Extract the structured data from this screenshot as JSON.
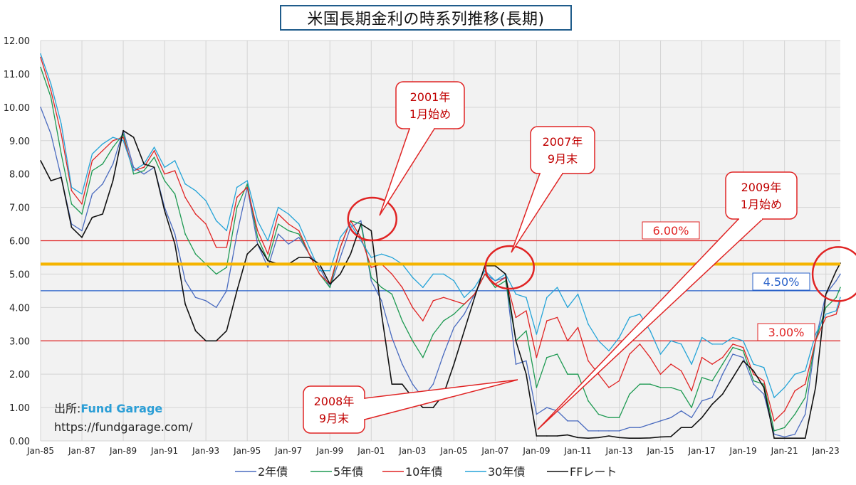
{
  "title": "米国長期金利の時系列推移(長期)",
  "source": {
    "label": "出所:",
    "brand": "Fund Garage",
    "url": "https://fundgarage.com/"
  },
  "chart_data": {
    "type": "line",
    "title": "米国長期金利の時系列推移(長期)",
    "xlabel": "",
    "ylabel": "",
    "ylim": [
      0,
      12
    ],
    "xlim": [
      1985.0,
      2023.7
    ],
    "grid": true,
    "legend_position": "bottom",
    "yticks": [
      "0.00",
      "1.00",
      "2.00",
      "3.00",
      "4.00",
      "5.00",
      "6.00",
      "7.00",
      "8.00",
      "9.00",
      "10.00",
      "11.00",
      "12.00"
    ],
    "xticks": [
      "Jan-85",
      "Jan-87",
      "Jan-89",
      "Jan-91",
      "Jan-93",
      "Jan-95",
      "Jan-97",
      "Jan-99",
      "Jan-01",
      "Jan-03",
      "Jan-05",
      "Jan-07",
      "Jan-09",
      "Jan-11",
      "Jan-13",
      "Jan-15",
      "Jan-17",
      "Jan-19",
      "Jan-21",
      "Jan-23"
    ],
    "series": [
      {
        "name": "2年債",
        "color": "#4a6bbf",
        "x": [
          1985.0,
          1985.5,
          1986.0,
          1986.5,
          1987.0,
          1987.5,
          1988.0,
          1988.5,
          1989.0,
          1989.5,
          1990.0,
          1990.5,
          1991.0,
          1991.5,
          1992.0,
          1992.5,
          1993.0,
          1993.5,
          1994.0,
          1994.5,
          1995.0,
          1995.5,
          1996.0,
          1996.5,
          1997.0,
          1997.5,
          1998.0,
          1998.5,
          1999.0,
          1999.5,
          2000.0,
          2000.5,
          2001.0,
          2001.5,
          2002.0,
          2002.5,
          2003.0,
          2003.5,
          2004.0,
          2004.5,
          2005.0,
          2005.5,
          2006.0,
          2006.5,
          2007.0,
          2007.5,
          2008.0,
          2008.5,
          2009.0,
          2009.5,
          2010.0,
          2010.5,
          2011.0,
          2011.5,
          2012.0,
          2012.5,
          2013.0,
          2013.5,
          2014.0,
          2014.5,
          2015.0,
          2015.5,
          2016.0,
          2016.5,
          2017.0,
          2017.5,
          2018.0,
          2018.5,
          2019.0,
          2019.5,
          2020.0,
          2020.5,
          2021.0,
          2021.5,
          2022.0,
          2022.5,
          2023.0,
          2023.5,
          2023.7
        ],
        "values": [
          10.0,
          9.2,
          7.9,
          6.5,
          6.3,
          7.4,
          7.7,
          8.3,
          9.3,
          8.2,
          8.0,
          8.2,
          7.0,
          6.2,
          4.8,
          4.3,
          4.2,
          4.0,
          4.5,
          6.2,
          7.6,
          5.9,
          5.2,
          6.2,
          5.9,
          6.1,
          5.6,
          5.2,
          4.6,
          5.5,
          6.4,
          6.6,
          4.8,
          4.2,
          3.1,
          2.3,
          1.7,
          1.3,
          1.7,
          2.6,
          3.4,
          3.8,
          4.4,
          5.0,
          4.8,
          4.9,
          2.3,
          2.4,
          0.8,
          1.0,
          0.9,
          0.6,
          0.6,
          0.3,
          0.3,
          0.3,
          0.3,
          0.4,
          0.4,
          0.5,
          0.6,
          0.7,
          0.9,
          0.7,
          1.2,
          1.3,
          2.0,
          2.6,
          2.5,
          1.7,
          1.4,
          0.2,
          0.12,
          0.2,
          0.8,
          3.0,
          4.4,
          4.8,
          5.0
        ]
      },
      {
        "name": "5年債",
        "color": "#1e9a52",
        "x": [
          1985.0,
          1985.5,
          1986.0,
          1986.5,
          1987.0,
          1987.5,
          1988.0,
          1988.5,
          1989.0,
          1989.5,
          1990.0,
          1990.5,
          1991.0,
          1991.5,
          1992.0,
          1992.5,
          1993.0,
          1993.5,
          1994.0,
          1994.5,
          1995.0,
          1995.5,
          1996.0,
          1996.5,
          1997.0,
          1997.5,
          1998.0,
          1998.5,
          1999.0,
          1999.5,
          2000.0,
          2000.5,
          2001.0,
          2001.5,
          2002.0,
          2002.5,
          2003.0,
          2003.5,
          2004.0,
          2004.5,
          2005.0,
          2005.5,
          2006.0,
          2006.5,
          2007.0,
          2007.5,
          2008.0,
          2008.5,
          2009.0,
          2009.5,
          2010.0,
          2010.5,
          2011.0,
          2011.5,
          2012.0,
          2012.5,
          2013.0,
          2013.5,
          2014.0,
          2014.5,
          2015.0,
          2015.5,
          2016.0,
          2016.5,
          2017.0,
          2017.5,
          2018.0,
          2018.5,
          2019.0,
          2019.5,
          2020.0,
          2020.5,
          2021.0,
          2021.5,
          2022.0,
          2022.5,
          2023.0,
          2023.5,
          2023.7
        ],
        "values": [
          11.2,
          10.3,
          8.6,
          7.1,
          6.8,
          8.1,
          8.3,
          8.8,
          9.2,
          8.0,
          8.1,
          8.5,
          7.8,
          7.4,
          6.2,
          5.6,
          5.3,
          5.0,
          5.2,
          7.0,
          7.7,
          6.1,
          5.4,
          6.5,
          6.3,
          6.2,
          5.6,
          5.0,
          4.6,
          5.8,
          6.6,
          6.5,
          4.9,
          4.6,
          4.4,
          3.6,
          3.0,
          2.5,
          3.2,
          3.6,
          3.8,
          4.1,
          4.4,
          5.0,
          4.6,
          4.8,
          3.0,
          3.3,
          1.6,
          2.5,
          2.6,
          2.0,
          2.0,
          1.2,
          0.8,
          0.7,
          0.7,
          1.4,
          1.7,
          1.7,
          1.6,
          1.6,
          1.5,
          1.0,
          1.9,
          1.8,
          2.3,
          2.8,
          2.7,
          1.8,
          1.7,
          0.3,
          0.4,
          0.8,
          1.3,
          3.0,
          4.0,
          4.3,
          4.6
        ]
      },
      {
        "name": "10年債",
        "color": "#e02424",
        "x": [
          1985.0,
          1985.5,
          1986.0,
          1986.5,
          1987.0,
          1987.5,
          1988.0,
          1988.5,
          1989.0,
          1989.5,
          1990.0,
          1990.5,
          1991.0,
          1991.5,
          1992.0,
          1992.5,
          1993.0,
          1993.5,
          1994.0,
          1994.5,
          1995.0,
          1995.5,
          1996.0,
          1996.5,
          1997.0,
          1997.5,
          1998.0,
          1998.5,
          1999.0,
          1999.5,
          2000.0,
          2000.5,
          2001.0,
          2001.5,
          2002.0,
          2002.5,
          2003.0,
          2003.5,
          2004.0,
          2004.5,
          2005.0,
          2005.5,
          2006.0,
          2006.5,
          2007.0,
          2007.5,
          2008.0,
          2008.5,
          2009.0,
          2009.5,
          2010.0,
          2010.5,
          2011.0,
          2011.5,
          2012.0,
          2012.5,
          2013.0,
          2013.5,
          2014.0,
          2014.5,
          2015.0,
          2015.5,
          2016.0,
          2016.5,
          2017.0,
          2017.5,
          2018.0,
          2018.5,
          2019.0,
          2019.5,
          2020.0,
          2020.5,
          2021.0,
          2021.5,
          2022.0,
          2022.5,
          2023.0,
          2023.5,
          2023.7
        ],
        "values": [
          11.5,
          10.5,
          9.2,
          7.5,
          7.1,
          8.4,
          8.7,
          9.0,
          9.1,
          8.1,
          8.2,
          8.7,
          8.0,
          8.1,
          7.3,
          6.8,
          6.5,
          5.8,
          5.8,
          7.3,
          7.6,
          6.3,
          5.6,
          6.8,
          6.5,
          6.3,
          5.6,
          5.0,
          4.7,
          5.8,
          6.6,
          6.1,
          5.2,
          5.3,
          5.0,
          4.6,
          4.0,
          3.6,
          4.2,
          4.3,
          4.2,
          4.1,
          4.4,
          5.0,
          4.7,
          4.9,
          3.7,
          3.9,
          2.5,
          3.6,
          3.7,
          3.0,
          3.4,
          2.4,
          2.0,
          1.6,
          1.8,
          2.6,
          2.9,
          2.5,
          2.0,
          2.3,
          2.1,
          1.5,
          2.5,
          2.3,
          2.5,
          2.9,
          2.8,
          2.0,
          1.8,
          0.6,
          0.9,
          1.5,
          1.7,
          3.0,
          3.7,
          3.8,
          4.2
        ]
      },
      {
        "name": "30年債",
        "color": "#25a4d8",
        "x": [
          1985.0,
          1985.5,
          1986.0,
          1986.5,
          1987.0,
          1987.5,
          1988.0,
          1988.5,
          1989.0,
          1989.5,
          1990.0,
          1990.5,
          1991.0,
          1991.5,
          1992.0,
          1992.5,
          1993.0,
          1993.5,
          1994.0,
          1994.5,
          1995.0,
          1995.5,
          1996.0,
          1996.5,
          1997.0,
          1997.5,
          1998.0,
          1998.5,
          1999.0,
          1999.5,
          2000.0,
          2000.5,
          2001.0,
          2001.5,
          2002.0,
          2002.5,
          2003.0,
          2003.5,
          2004.0,
          2004.5,
          2005.0,
          2005.5,
          2006.0,
          2006.5,
          2007.0,
          2007.5,
          2008.0,
          2008.5,
          2009.0,
          2009.5,
          2010.0,
          2010.5,
          2011.0,
          2011.5,
          2012.0,
          2012.5,
          2013.0,
          2013.5,
          2014.0,
          2014.5,
          2015.0,
          2015.5,
          2016.0,
          2016.5,
          2017.0,
          2017.5,
          2018.0,
          2018.5,
          2019.0,
          2019.5,
          2020.0,
          2020.5,
          2021.0,
          2021.5,
          2022.0,
          2022.5,
          2023.0,
          2023.5,
          2023.7
        ],
        "values": [
          11.6,
          10.7,
          9.5,
          7.6,
          7.4,
          8.6,
          8.9,
          9.1,
          9.0,
          8.1,
          8.3,
          8.8,
          8.2,
          8.4,
          7.7,
          7.5,
          7.2,
          6.6,
          6.3,
          7.6,
          7.8,
          6.6,
          6.0,
          7.0,
          6.8,
          6.5,
          5.8,
          5.1,
          5.1,
          6.1,
          6.5,
          6.0,
          5.5,
          5.6,
          5.5,
          5.3,
          4.9,
          4.6,
          5.0,
          5.0,
          4.8,
          4.3,
          4.6,
          5.1,
          4.8,
          5.0,
          4.4,
          4.3,
          3.2,
          4.3,
          4.6,
          4.0,
          4.4,
          3.5,
          3.0,
          2.7,
          3.1,
          3.7,
          3.8,
          3.3,
          2.6,
          3.0,
          2.9,
          2.3,
          3.1,
          2.9,
          2.9,
          3.1,
          3.0,
          2.3,
          2.2,
          1.3,
          1.6,
          2.0,
          2.1,
          3.2,
          3.8,
          3.9,
          4.3
        ]
      },
      {
        "name": "FFレート",
        "color": "#111111",
        "x": [
          1985.0,
          1985.5,
          1986.0,
          1986.5,
          1987.0,
          1987.5,
          1988.0,
          1988.5,
          1989.0,
          1989.5,
          1990.0,
          1990.5,
          1991.0,
          1991.5,
          1992.0,
          1992.5,
          1993.0,
          1993.5,
          1994.0,
          1994.5,
          1995.0,
          1995.5,
          1996.0,
          1996.5,
          1997.0,
          1997.5,
          1998.0,
          1998.5,
          1999.0,
          1999.5,
          2000.0,
          2000.5,
          2001.0,
          2001.5,
          2002.0,
          2002.5,
          2003.0,
          2003.5,
          2004.0,
          2004.5,
          2005.0,
          2005.5,
          2006.0,
          2006.5,
          2007.0,
          2007.5,
          2008.0,
          2008.5,
          2009.0,
          2009.5,
          2010.0,
          2010.5,
          2011.0,
          2011.5,
          2012.0,
          2012.5,
          2013.0,
          2013.5,
          2014.0,
          2014.5,
          2015.0,
          2015.5,
          2016.0,
          2016.5,
          2017.0,
          2017.5,
          2018.0,
          2018.5,
          2019.0,
          2019.5,
          2020.0,
          2020.5,
          2021.0,
          2021.5,
          2022.0,
          2022.5,
          2023.0,
          2023.5,
          2023.7
        ],
        "values": [
          8.4,
          7.8,
          7.9,
          6.4,
          6.1,
          6.7,
          6.8,
          7.8,
          9.3,
          9.1,
          8.3,
          8.2,
          6.9,
          5.9,
          4.1,
          3.3,
          3.0,
          3.0,
          3.3,
          4.5,
          5.6,
          5.9,
          5.4,
          5.3,
          5.3,
          5.5,
          5.5,
          5.3,
          4.7,
          5.0,
          5.6,
          6.5,
          6.3,
          3.8,
          1.7,
          1.7,
          1.3,
          1.0,
          1.0,
          1.4,
          2.3,
          3.3,
          4.3,
          5.25,
          5.25,
          5.0,
          3.0,
          2.0,
          0.15,
          0.15,
          0.15,
          0.18,
          0.1,
          0.08,
          0.1,
          0.15,
          0.1,
          0.08,
          0.08,
          0.09,
          0.12,
          0.13,
          0.4,
          0.4,
          0.7,
          1.1,
          1.4,
          1.9,
          2.4,
          2.1,
          1.6,
          0.08,
          0.08,
          0.08,
          0.08,
          1.6,
          4.4,
          5.1,
          5.33
        ]
      }
    ],
    "reference_lines": [
      {
        "value": 6.0,
        "color": "#e02424",
        "label": "6.00%"
      },
      {
        "value": 3.0,
        "color": "#e02424",
        "label": "3.00%"
      },
      {
        "value": 4.5,
        "color": "#2a62c9",
        "label": "4.50%"
      },
      {
        "value": 5.3,
        "color": "#f5b400",
        "label": ""
      }
    ],
    "annotations": [
      {
        "lines": [
          "2001年",
          "1月始め"
        ],
        "x": 2001.05,
        "y": 6.55
      },
      {
        "lines": [
          "2007年",
          "9月末"
        ],
        "x": 2007.7,
        "y": 5.3
      },
      {
        "lines": [
          "2009年",
          "1月始め"
        ],
        "x": 2009.0,
        "y": 0.3
      },
      {
        "lines": [
          "2008年",
          "9月末"
        ],
        "x": 2008.7,
        "y": 1.9
      }
    ],
    "highlight_circles": [
      {
        "x": 2001.05,
        "y": 6.65
      },
      {
        "x": 2007.7,
        "y": 5.2
      },
      {
        "x": 2023.6,
        "y": 5.0
      }
    ]
  }
}
